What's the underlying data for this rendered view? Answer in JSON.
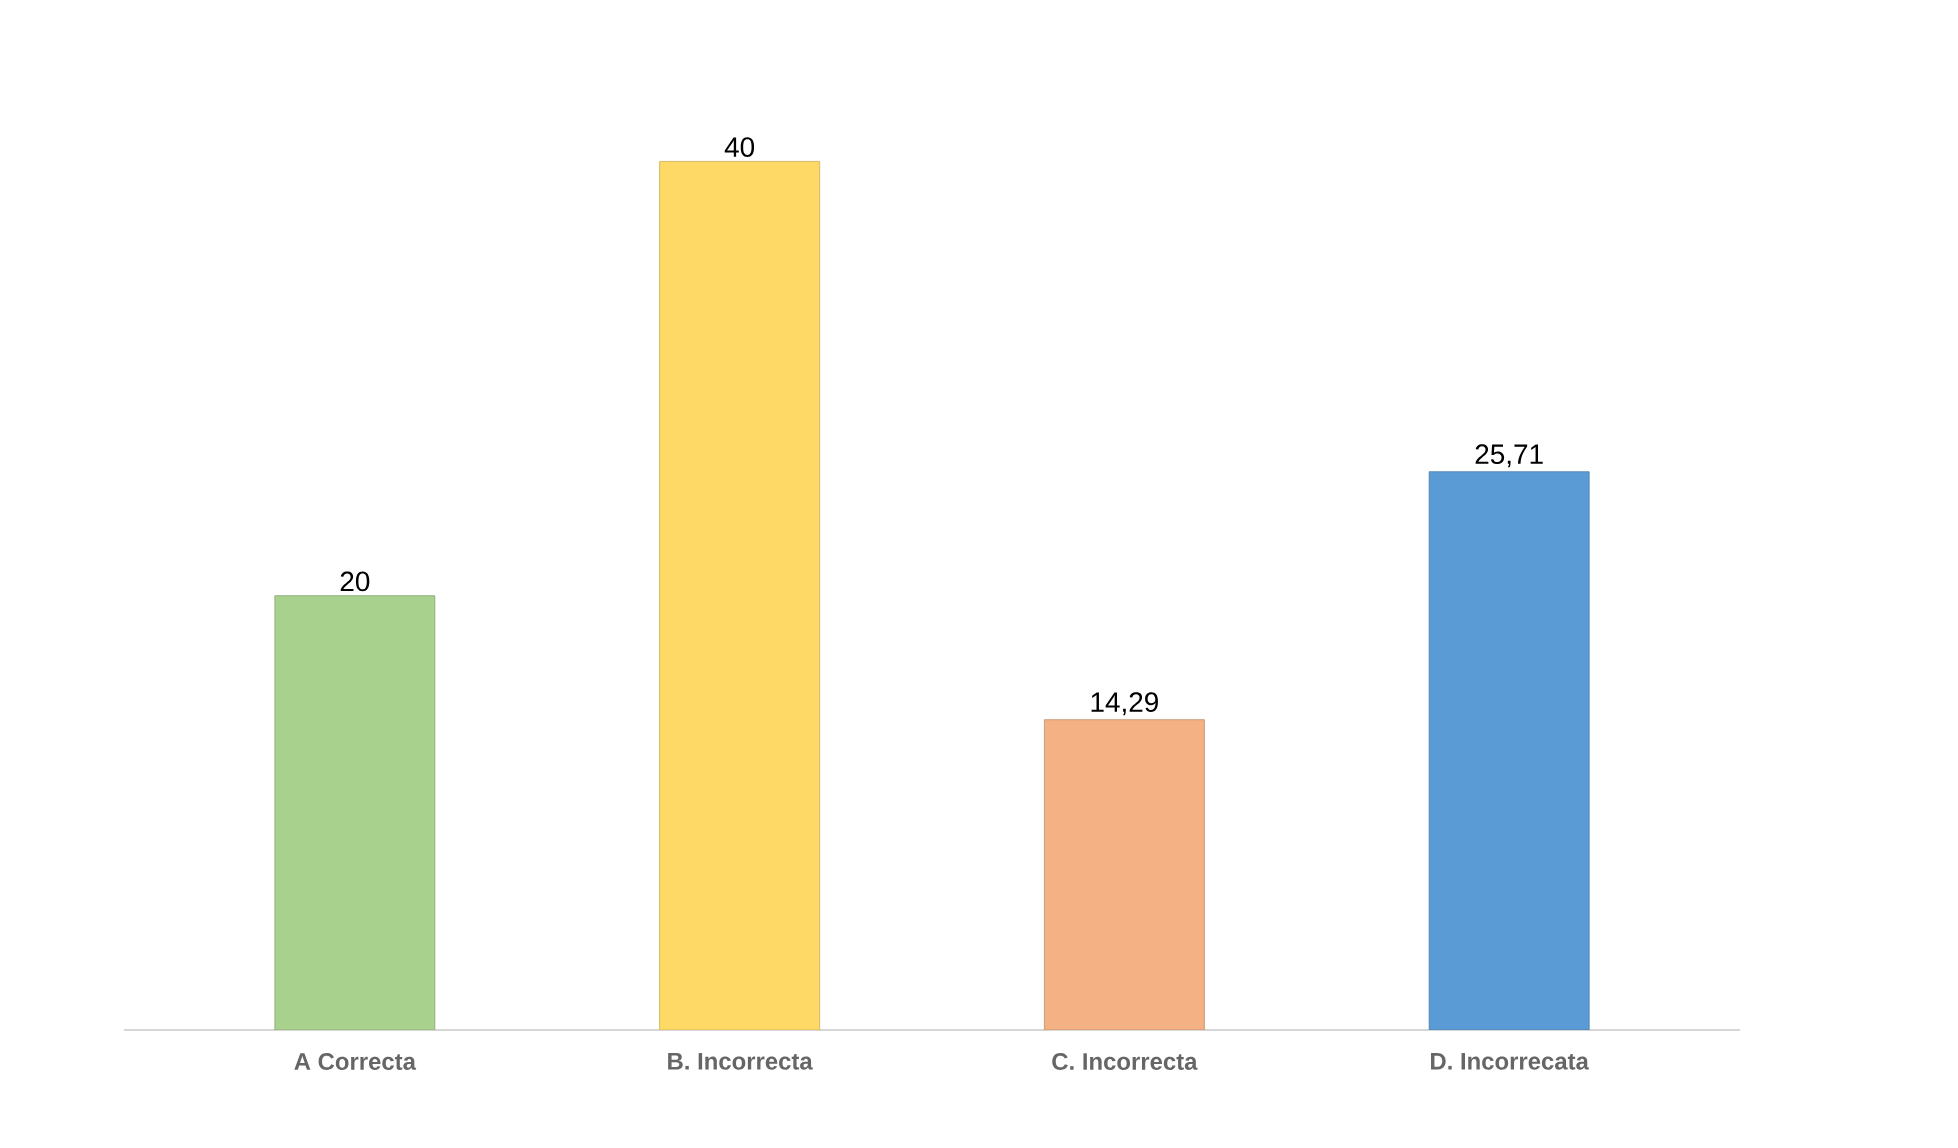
{
  "chart_data": {
    "type": "bar",
    "categories": [
      "A Correcta",
      "B. Incorrecta",
      "C. Incorrecta",
      "D. Incorrecata"
    ],
    "values": [
      20,
      40,
      14.29,
      25.71
    ],
    "colors": [
      "#a9d18e",
      "#ffd966",
      "#f4b183",
      "#5b9bd5"
    ],
    "value_labels": [
      "20",
      "40",
      "14,29",
      "25,71"
    ]
  }
}
